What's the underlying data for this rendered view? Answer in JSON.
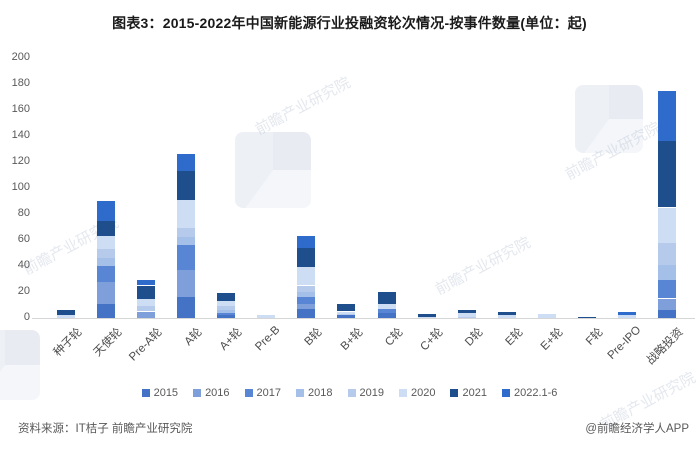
{
  "title": "图表3：2015-2022年中国新能源行业投融资轮次情况-按事件数量(单位：起)",
  "chart_data": {
    "type": "bar",
    "stacked": true,
    "title": "图表3：2015-2022年中国新能源行业投融资轮次情况-按事件数量(单位：起)",
    "unit": "起",
    "categories": [
      "种子轮",
      "天使轮",
      "Pre-A轮",
      "A轮",
      "A+轮",
      "Pre-B",
      "B轮",
      "B+轮",
      "C轮",
      "C+轮",
      "D轮",
      "E轮",
      "E+轮",
      "F轮",
      "Pre-IPO",
      "战略投资"
    ],
    "series": [
      {
        "name": "2015",
        "color": "#4472C4",
        "values": [
          0,
          11,
          0,
          16,
          2,
          0,
          7,
          2,
          4,
          0,
          0,
          0,
          0,
          0,
          0,
          6
        ]
      },
      {
        "name": "2016",
        "color": "#7E9FDA",
        "values": [
          0,
          17,
          5,
          21,
          0,
          0,
          4,
          0,
          0,
          0,
          0,
          0,
          0,
          0,
          0,
          9
        ]
      },
      {
        "name": "2017",
        "color": "#5886D4",
        "values": [
          0,
          12,
          0,
          19,
          2,
          0,
          5,
          0,
          3,
          0,
          0,
          0,
          0,
          0,
          0,
          14
        ]
      },
      {
        "name": "2018",
        "color": "#A5C0E8",
        "values": [
          0,
          6,
          0,
          6,
          2,
          0,
          4,
          0,
          0,
          0,
          0,
          0,
          0,
          0,
          0,
          12
        ]
      },
      {
        "name": "2019",
        "color": "#B6CBEC",
        "values": [
          0,
          7,
          4,
          7,
          3,
          0,
          5,
          1,
          0,
          0,
          1,
          0,
          0,
          0,
          0,
          17
        ]
      },
      {
        "name": "2020",
        "color": "#CDDEF4",
        "values": [
          2,
          10,
          6,
          22,
          4,
          2,
          14,
          2,
          4,
          1,
          3,
          2,
          3,
          0,
          2,
          27
        ]
      },
      {
        "name": "2021",
        "color": "#1F4E8C",
        "values": [
          4,
          12,
          10,
          22,
          6,
          0,
          15,
          6,
          9,
          2,
          2,
          3,
          0,
          1,
          0,
          51
        ]
      },
      {
        "name": "2022.1-6",
        "color": "#2E6BCB",
        "values": [
          0,
          15,
          4,
          13,
          0,
          0,
          9,
          0,
          0,
          0,
          0,
          0,
          0,
          0,
          3,
          39
        ]
      }
    ],
    "ylim": [
      0,
      200
    ],
    "ytick_step": 20,
    "grid": false,
    "legend_position": "bottom"
  },
  "footer": {
    "source": "资料来源：IT桔子 前瞻产业研究院",
    "credit": "@前瞻经济学人APP"
  },
  "watermark": {
    "text": "前瞻产业研究院"
  }
}
